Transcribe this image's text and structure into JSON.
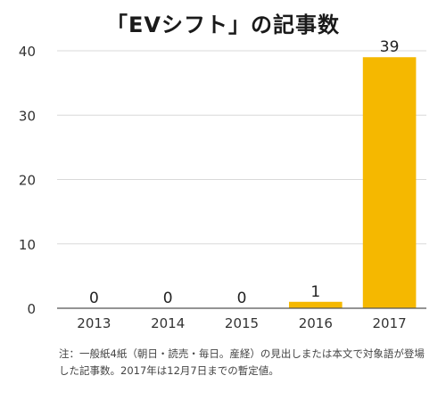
{
  "chart_data": {
    "type": "bar",
    "title": "「EVシフト」の記事数",
    "categories": [
      "2013",
      "2014",
      "2015",
      "2016",
      "2017"
    ],
    "values": [
      0,
      0,
      0,
      1,
      39
    ],
    "data_labels": [
      "0",
      "0",
      "0",
      "1",
      "39"
    ],
    "y_ticks": [
      0,
      10,
      20,
      30,
      40
    ],
    "ylim": [
      0,
      40
    ],
    "grid": true,
    "bar_color": "#f5b800",
    "xlabel": "",
    "ylabel": ""
  },
  "footnote": "注：一般紙4紙（朝日・読売・毎日。産経）の見出しまたは本文で対象語が登場した記事数。2017年は12月7日までの暫定値。"
}
